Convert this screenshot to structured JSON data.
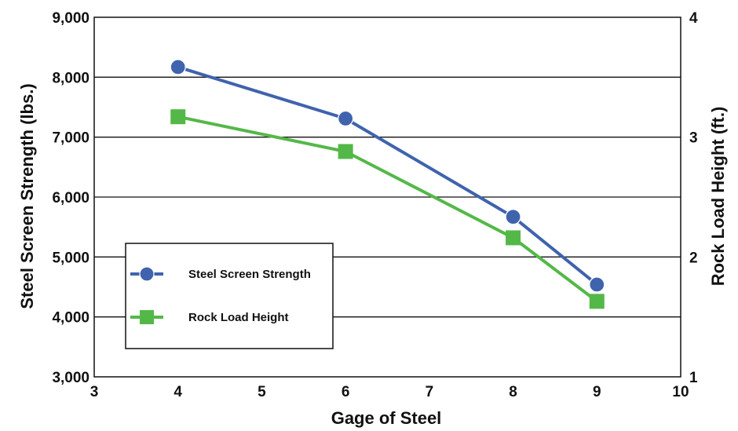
{
  "chart_data": {
    "type": "line",
    "xlabel": "Gage of Steel",
    "ylabel_left": "Steel Screen Strength (lbs.)",
    "ylabel_right": "Rock Load Height (ft.)",
    "xlim": [
      3,
      10
    ],
    "ylim_left": [
      3000,
      9000
    ],
    "ylim_right": [
      1,
      4
    ],
    "x_ticks": [
      "3",
      "4",
      "5",
      "6",
      "7",
      "8",
      "9",
      "10"
    ],
    "y_left_ticks": [
      "3,000",
      "4,000",
      "5,000",
      "6,000",
      "7,000",
      "8,000",
      "9,000"
    ],
    "y_right_ticks": [
      "1",
      "2",
      "3",
      "4"
    ],
    "grid": "horizontal",
    "legend_position": "lower-left",
    "series": [
      {
        "name": "Steel Screen Strength",
        "axis": "left",
        "color": "#3f63ad",
        "marker": "circle",
        "x": [
          4,
          6,
          8,
          9
        ],
        "y": [
          8170,
          7310,
          5670,
          4540
        ]
      },
      {
        "name": "Rock Load Height",
        "axis": "right",
        "color": "#54b848",
        "marker": "square",
        "x": [
          4,
          6,
          8,
          9
        ],
        "y": [
          3.17,
          2.88,
          2.16,
          1.63
        ]
      }
    ]
  }
}
